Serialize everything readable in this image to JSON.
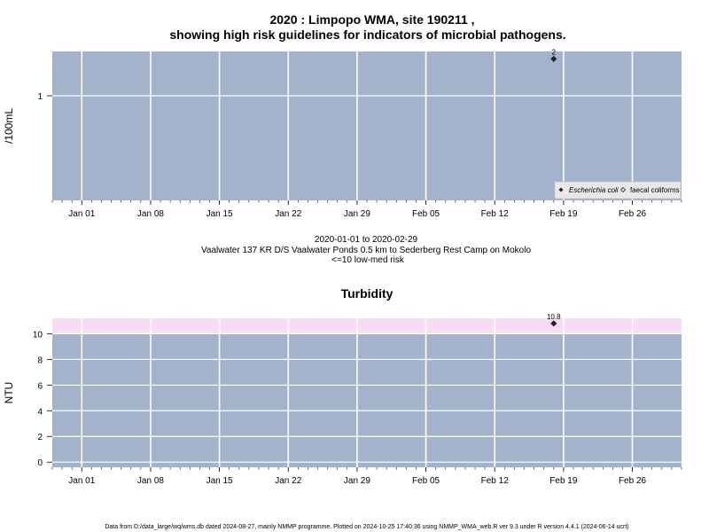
{
  "title_line1": "2020 : Limpopo WMA, site 190211 ,",
  "title_line2": "showing high risk guidelines for indicators of microbial pathogens.",
  "date_range": "2020-01-01 to 2020-02-29",
  "site_description": "Vaalwater 137 KR D/S Vaalwater Ponds 0.5 km to Sederberg Rest Camp on Mokolo",
  "risk_note": "<=10 low-med risk",
  "footer": "Data from D:/data_large/wq/wms.db dated 2024-08-27, mainly NMMP programme. Plotted on 2024-10-25 17:40:36 using NMMP_WMA_web.R ver 9.3 under R version 4.4.1 (2024-06-14 ucrt)",
  "colors": {
    "panel_bg": "#a3b3cb",
    "grid": "#ffffff",
    "risk_band": "#f7dcf5",
    "point": "#222222"
  },
  "chart_data": [
    {
      "type": "scatter",
      "title": "",
      "xlabel": "",
      "ylabel": "/100mL",
      "x_ticks": [
        "Jan 01",
        "Jan 08",
        "Jan 15",
        "Jan 22",
        "Jan 29",
        "Feb 05",
        "Feb 12",
        "Feb 19",
        "Feb 26"
      ],
      "x_tick_dates": [
        "2020-01-01",
        "2020-01-08",
        "2020-01-15",
        "2020-01-22",
        "2020-01-29",
        "2020-02-05",
        "2020-02-12",
        "2020-02-19",
        "2020-02-26"
      ],
      "xlim": [
        "2019-12-29",
        "2020-03-02"
      ],
      "y_scale": "log",
      "ylim": [
        0.14,
        2.3
      ],
      "y_ticks": [
        1
      ],
      "y_tick_labels": [
        "1"
      ],
      "grid": true,
      "legend_position": "bottom-right",
      "series": [
        {
          "name": "Escherichia coli",
          "marker": "filled-diamond",
          "points": [
            {
              "x": "2020-02-18",
              "y": 2,
              "label": "2"
            }
          ]
        },
        {
          "name": "faecal coliforms",
          "marker": "open-diamond",
          "points": []
        }
      ]
    },
    {
      "type": "scatter",
      "title": "Turbidity",
      "xlabel": "",
      "ylabel": "NTU",
      "x_ticks": [
        "Jan 01",
        "Jan 08",
        "Jan 15",
        "Jan 22",
        "Jan 29",
        "Feb 05",
        "Feb 12",
        "Feb 19",
        "Feb 26"
      ],
      "x_tick_dates": [
        "2020-01-01",
        "2020-01-08",
        "2020-01-15",
        "2020-01-22",
        "2020-01-29",
        "2020-02-05",
        "2020-02-12",
        "2020-02-19",
        "2020-02-26"
      ],
      "xlim": [
        "2019-12-29",
        "2020-03-02"
      ],
      "ylim": [
        -0.4,
        11.2
      ],
      "y_ticks": [
        0,
        2,
        4,
        6,
        8,
        10
      ],
      "y_tick_labels": [
        "0",
        "2",
        "4",
        "6",
        "8",
        "10"
      ],
      "grid": true,
      "risk_band": [
        10,
        11.2
      ],
      "series": [
        {
          "marker": "filled-diamond",
          "points": [
            {
              "x": "2020-02-18",
              "y": 10.8,
              "label": "10.8"
            }
          ]
        }
      ]
    }
  ]
}
